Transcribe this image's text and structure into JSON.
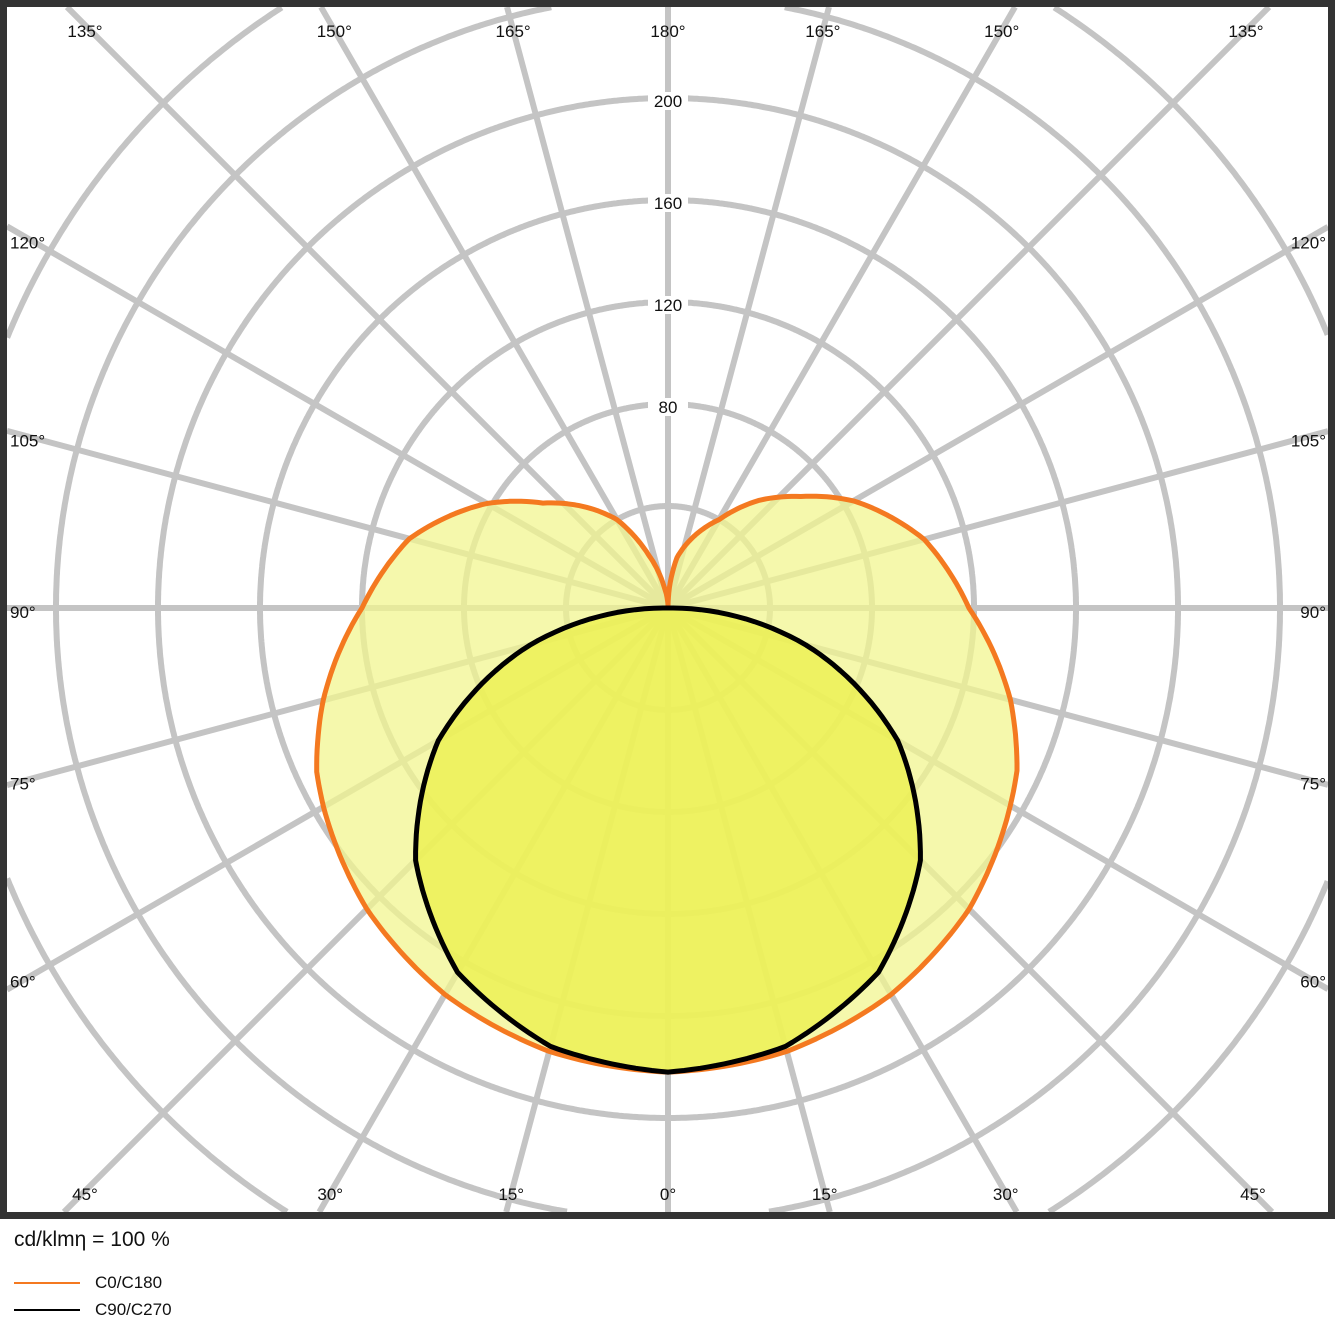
{
  "chart_data": {
    "type": "polar",
    "radial_ticks": [
      40,
      80,
      120,
      160,
      200,
      240,
      280
    ],
    "radial_tick_labels": [
      "80",
      "120",
      "160",
      "200"
    ],
    "radial_max_visible": 280,
    "angle_step": 15,
    "angle_labels_top": [
      "135°",
      "150°",
      "165°",
      "180°",
      "165°",
      "150°",
      "135°"
    ],
    "angle_labels_left": [
      "120°",
      "105°",
      "90°",
      "75°",
      "60°"
    ],
    "angle_labels_right": [
      "120°",
      "105°",
      "90°",
      "75°",
      "60°"
    ],
    "angle_labels_bottom": [
      "45°",
      "30°",
      "15°",
      "0°",
      "15°",
      "30°",
      "45°"
    ],
    "grid": true,
    "unit_label": "cd/klmη = 100 %",
    "series": [
      {
        "name": "C0/C180",
        "color": "#f47920",
        "fill": "#f2f590",
        "angles": [
          0,
          15,
          30,
          45,
          60,
          65,
          75,
          90,
          105,
          120,
          130,
          140,
          150,
          160,
          170,
          180
        ],
        "values_left": [
          182,
          180,
          175,
          167,
          156,
          152,
          140,
          120,
          105,
          82,
          64,
          52,
          40,
          22,
          8,
          0
        ],
        "values_right": [
          182,
          180,
          175,
          167,
          155,
          151,
          139,
          118,
          104,
          84,
          68,
          55,
          40,
          30,
          20,
          0
        ]
      },
      {
        "name": "C90/C270",
        "color": "#000000",
        "fill": "#ecf050",
        "angles": [
          0,
          15,
          30,
          45,
          60,
          75,
          90
        ],
        "values_left": [
          182,
          178,
          165,
          140,
          104,
          56,
          2
        ],
        "values_right": [
          182,
          178,
          165,
          140,
          104,
          56,
          2
        ]
      }
    ],
    "legend": "bottom-left"
  }
}
